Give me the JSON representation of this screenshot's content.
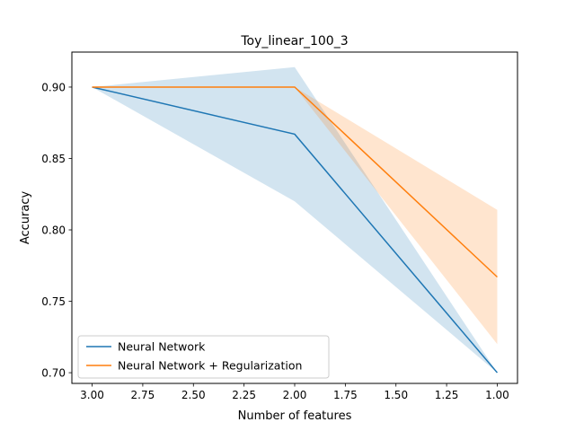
{
  "chart_data": {
    "type": "line",
    "title": "Toy_linear_100_3",
    "xlabel": "Number of features",
    "ylabel": "Accuracy",
    "x": [
      3.0,
      2.0,
      1.0
    ],
    "xlim": [
      3.1,
      0.9
    ],
    "ylim": [
      0.6925,
      0.9245
    ],
    "x_inverted": true,
    "xticks": [
      3.0,
      2.75,
      2.5,
      2.25,
      2.0,
      1.75,
      1.5,
      1.25,
      1.0
    ],
    "xtick_labels": [
      "3.00",
      "2.75",
      "2.50",
      "2.25",
      "2.00",
      "1.75",
      "1.50",
      "1.25",
      "1.00"
    ],
    "yticks": [
      0.7,
      0.75,
      0.8,
      0.85,
      0.9
    ],
    "ytick_labels": [
      "0.70",
      "0.75",
      "0.80",
      "0.85",
      "0.90"
    ],
    "grid": false,
    "legend_position": "lower-left",
    "series": [
      {
        "name": "Neural Network",
        "color": "#1f77b4",
        "values": [
          0.9,
          0.867,
          0.7
        ],
        "band_lower": [
          0.9,
          0.82,
          0.7
        ],
        "band_upper": [
          0.9,
          0.914,
          0.7
        ]
      },
      {
        "name": "Neural Network + Regularization",
        "color": "#ff7f0e",
        "values": [
          0.9,
          0.9,
          0.767
        ],
        "band_lower": [
          0.9,
          0.9,
          0.72
        ],
        "band_upper": [
          0.9,
          0.9,
          0.814
        ]
      }
    ]
  }
}
